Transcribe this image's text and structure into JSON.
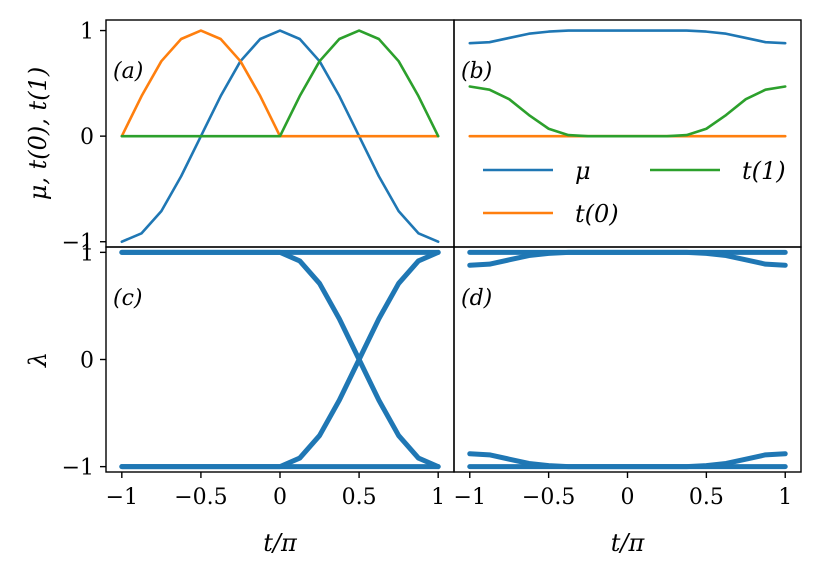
{
  "chart_data": [
    {
      "panel": "a",
      "type": "line",
      "label": "(a)",
      "ylabel": "μ, t(0), t(1)",
      "xlabel": "",
      "xlim": [
        -1.1,
        1.1
      ],
      "ylim": [
        -1.05,
        1.1
      ],
      "xticks": [
        "−1",
        "−0.5",
        "0",
        "0.5",
        "1"
      ],
      "yticks": [
        "−1",
        "0",
        "1"
      ],
      "ytick_values": [
        -1,
        0,
        1
      ],
      "series": [
        {
          "name": "μ",
          "color": "#1f77b4",
          "x": [
            -1,
            -0.875,
            -0.75,
            -0.625,
            -0.5,
            -0.375,
            -0.25,
            -0.125,
            0,
            0.125,
            0.25,
            0.375,
            0.5,
            0.625,
            0.75,
            0.875,
            1
          ],
          "y": [
            -1,
            -0.92,
            -0.71,
            -0.38,
            0,
            0.38,
            0.71,
            0.92,
            1,
            0.92,
            0.71,
            0.38,
            0,
            -0.38,
            -0.71,
            -0.92,
            -1
          ]
        },
        {
          "name": "t(0)",
          "color": "#ff7f0e",
          "x": [
            -1,
            -0.875,
            -0.75,
            -0.625,
            -0.5,
            -0.375,
            -0.25,
            -0.125,
            0,
            0.125,
            0.25,
            0.375,
            0.5,
            0.625,
            0.75,
            0.875,
            1
          ],
          "y": [
            0,
            0.38,
            0.71,
            0.92,
            1,
            0.92,
            0.71,
            0.38,
            0,
            0,
            0,
            0,
            0,
            0,
            0,
            0,
            0
          ]
        },
        {
          "name": "t(1)",
          "color": "#2ca02c",
          "x": [
            -1,
            -0.875,
            -0.75,
            -0.625,
            -0.5,
            -0.375,
            -0.25,
            -0.125,
            0,
            0.125,
            0.25,
            0.375,
            0.5,
            0.625,
            0.75,
            0.875,
            1
          ],
          "y": [
            0,
            0,
            0,
            0,
            0,
            0,
            0,
            0,
            0,
            0.38,
            0.71,
            0.92,
            1,
            0.92,
            0.71,
            0.38,
            0
          ]
        }
      ]
    },
    {
      "panel": "b",
      "type": "line",
      "label": "(b)",
      "xlim": [
        -1.1,
        1.1
      ],
      "ylim": [
        -1.05,
        1.1
      ],
      "legend": {
        "placement": "lower-right",
        "columns": 2,
        "entries": [
          "μ",
          "t(1)",
          "t(0)"
        ]
      },
      "series": [
        {
          "name": "μ",
          "color": "#1f77b4",
          "x": [
            -1,
            -0.875,
            -0.75,
            -0.625,
            -0.5,
            -0.375,
            -0.25,
            0,
            0.25,
            0.375,
            0.5,
            0.625,
            0.75,
            0.875,
            1
          ],
          "y": [
            0.88,
            0.89,
            0.93,
            0.97,
            0.99,
            1,
            1,
            1,
            1,
            1,
            0.99,
            0.97,
            0.93,
            0.89,
            0.88
          ]
        },
        {
          "name": "t(0)",
          "color": "#ff7f0e",
          "x": [
            -1,
            1
          ],
          "y": [
            0,
            0
          ]
        },
        {
          "name": "t(1)",
          "color": "#2ca02c",
          "x": [
            -1,
            -0.875,
            -0.75,
            -0.625,
            -0.5,
            -0.375,
            -0.25,
            0,
            0.25,
            0.375,
            0.5,
            0.625,
            0.75,
            0.875,
            1
          ],
          "y": [
            0.47,
            0.44,
            0.35,
            0.2,
            0.07,
            0.01,
            0,
            0,
            0,
            0.01,
            0.07,
            0.2,
            0.35,
            0.44,
            0.47
          ]
        }
      ]
    },
    {
      "panel": "c",
      "type": "line",
      "label": "(c)",
      "ylabel": "λ",
      "xlabel": "t/π",
      "xlim": [
        -1.1,
        1.1
      ],
      "ylim": [
        -1.05,
        1.05
      ],
      "xticks": [
        "−1",
        "−0.5",
        "0",
        "0.5",
        "1"
      ],
      "xtick_values": [
        -1,
        -0.5,
        0,
        0.5,
        1
      ],
      "yticks": [
        "−1",
        "0",
        "1"
      ],
      "ytick_values": [
        -1,
        0,
        1
      ],
      "series": [
        {
          "color": "#1f77b4",
          "x": [
            -1,
            1
          ],
          "y": [
            1,
            1
          ]
        },
        {
          "color": "#1f77b4",
          "x": [
            -1,
            1
          ],
          "y": [
            -1,
            -1
          ]
        },
        {
          "color": "#1f77b4",
          "x": [
            -1,
            0,
            0.125,
            0.25,
            0.375,
            0.5,
            0.625,
            0.75,
            0.875,
            1
          ],
          "y": [
            1,
            1,
            0.92,
            0.71,
            0.38,
            0,
            -0.38,
            -0.71,
            -0.92,
            -1
          ]
        },
        {
          "color": "#1f77b4",
          "x": [
            -1,
            0,
            0.125,
            0.25,
            0.375,
            0.5,
            0.625,
            0.75,
            0.875,
            1
          ],
          "y": [
            -1,
            -1,
            -0.92,
            -0.71,
            -0.38,
            0,
            0.38,
            0.71,
            0.92,
            1
          ]
        }
      ]
    },
    {
      "panel": "d",
      "type": "line",
      "label": "(d)",
      "xlabel": "t/π",
      "xlim": [
        -1.1,
        1.1
      ],
      "ylim": [
        -1.05,
        1.05
      ],
      "xticks": [
        "−1",
        "−0.5",
        "0",
        "0.5",
        "1"
      ],
      "xtick_values": [
        -1,
        -0.5,
        0,
        0.5,
        1
      ],
      "series": [
        {
          "color": "#1f77b4",
          "x": [
            -1,
            1
          ],
          "y": [
            1,
            1
          ]
        },
        {
          "color": "#1f77b4",
          "x": [
            -1,
            1
          ],
          "y": [
            -1,
            -1
          ]
        },
        {
          "color": "#1f77b4",
          "x": [
            -1,
            -0.875,
            -0.75,
            -0.625,
            -0.5,
            -0.375,
            -0.25,
            0,
            0.25,
            0.375,
            0.5,
            0.625,
            0.75,
            0.875,
            1
          ],
          "y": [
            0.88,
            0.89,
            0.93,
            0.97,
            0.99,
            1,
            1,
            1,
            1,
            1,
            0.99,
            0.97,
            0.93,
            0.89,
            0.88
          ]
        },
        {
          "color": "#1f77b4",
          "x": [
            -1,
            -0.875,
            -0.75,
            -0.625,
            -0.5,
            -0.375,
            -0.25,
            0,
            0.25,
            0.375,
            0.5,
            0.625,
            0.75,
            0.875,
            1
          ],
          "y": [
            -0.88,
            -0.89,
            -0.93,
            -0.97,
            -0.99,
            -1,
            -1,
            -1,
            -1,
            -1,
            -0.99,
            -0.97,
            -0.93,
            -0.89,
            -0.88
          ]
        }
      ]
    }
  ]
}
